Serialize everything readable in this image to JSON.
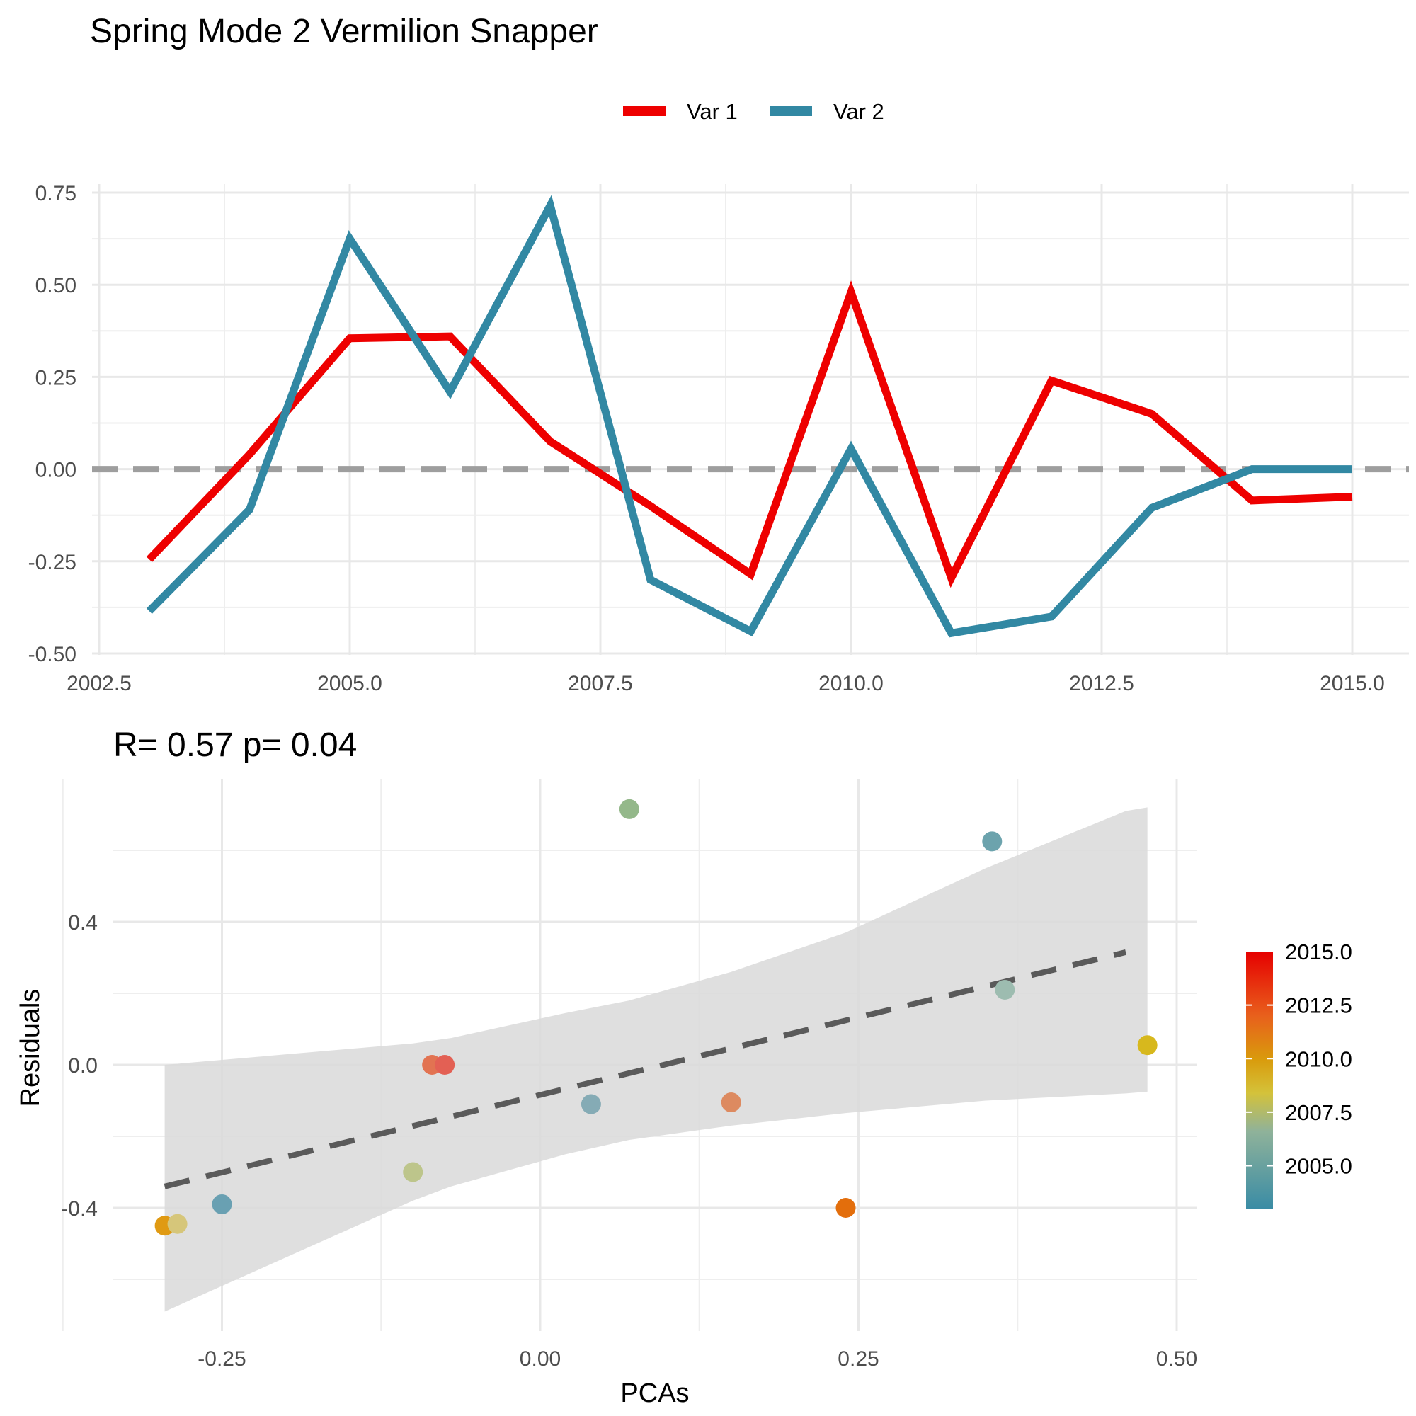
{
  "chart_data": [
    {
      "type": "line",
      "title": "Spring Mode 2 Vermilion Snapper",
      "xlabel": "",
      "ylabel": "",
      "xlim": [
        2002.5,
        2015.5
      ],
      "ylim": [
        -0.5,
        0.75
      ],
      "x_ticks": [
        "2002.5",
        "2005.0",
        "2007.5",
        "2010.0",
        "2012.5",
        "2015.0"
      ],
      "y_ticks": [
        "-0.50",
        "-0.25",
        "0.00",
        "0.25",
        "0.50",
        "0.75"
      ],
      "legend_position": "top",
      "reference_line": {
        "y": 0,
        "style": "dashed",
        "color": "#9e9e9e"
      },
      "x": [
        2003,
        2004,
        2005,
        2006,
        2007,
        2008,
        2009,
        2010,
        2011,
        2012,
        2013,
        2014,
        2015
      ],
      "series": [
        {
          "name": "Var 1",
          "color": "#ee0000",
          "values": [
            -0.245,
            0.04,
            0.355,
            0.36,
            0.075,
            -0.1,
            -0.285,
            0.48,
            -0.295,
            0.24,
            0.15,
            -0.085,
            -0.075
          ]
        },
        {
          "name": "Var 2",
          "color": "#3288a3",
          "values": [
            -0.385,
            -0.11,
            0.625,
            0.21,
            0.715,
            -0.3,
            -0.44,
            0.055,
            -0.445,
            -0.4,
            -0.105,
            0.0,
            0.0
          ]
        }
      ]
    },
    {
      "type": "scatter",
      "title": "R= 0.57  p= 0.04",
      "xlabel": "PCAs",
      "ylabel": "Residuals",
      "xlim": [
        -0.335,
        0.51
      ],
      "ylim": [
        -0.74,
        0.74
      ],
      "x_ticks": [
        "-0.25",
        "0.00",
        "0.25",
        "0.50"
      ],
      "y_ticks": [
        "-0.4",
        "0.0",
        "0.4"
      ],
      "fit": {
        "style": "dashed",
        "color": "#5a5a5a",
        "x": [
          -0.295,
          0.46
        ],
        "y": [
          -0.34,
          0.315
        ]
      },
      "ribbon": {
        "color": "#d9d9d9",
        "x": [
          -0.295,
          -0.1,
          -0.07,
          0.02,
          0.07,
          0.15,
          0.24,
          0.35,
          0.46,
          0.477
        ],
        "upper": [
          0.0,
          0.06,
          0.075,
          0.145,
          0.18,
          0.26,
          0.37,
          0.55,
          0.71,
          0.72
        ],
        "lower": [
          -0.69,
          -0.38,
          -0.34,
          -0.25,
          -0.21,
          -0.17,
          -0.135,
          -0.1,
          -0.08,
          -0.075
        ]
      },
      "colorbar": {
        "ticks": [
          "2015.0",
          "2012.5",
          "2010.0",
          "2007.5",
          "2005.0"
        ],
        "range": [
          2003,
          2015
        ],
        "stops": [
          {
            "offset": 0.0,
            "color": "#e60000"
          },
          {
            "offset": 0.25,
            "color": "#e8601c"
          },
          {
            "offset": 0.42,
            "color": "#d99b0c"
          },
          {
            "offset": 0.55,
            "color": "#d4c23a"
          },
          {
            "offset": 0.7,
            "color": "#8fb29a"
          },
          {
            "offset": 1.0,
            "color": "#3a8ca5"
          }
        ]
      },
      "points": [
        {
          "x": -0.295,
          "y": -0.45,
          "year": 2011,
          "color": "#e09a13"
        },
        {
          "x": -0.285,
          "y": -0.445,
          "year": 2009,
          "color": "#d6c67a"
        },
        {
          "x": -0.25,
          "y": -0.39,
          "year": 2004,
          "color": "#69a0b2"
        },
        {
          "x": -0.1,
          "y": -0.3,
          "year": 2008,
          "color": "#bdc58b"
        },
        {
          "x": -0.085,
          "y": 0.0,
          "year": 2013,
          "color": "#e27352"
        },
        {
          "x": -0.075,
          "y": 0.0,
          "year": 2014,
          "color": "#e36054"
        },
        {
          "x": 0.04,
          "y": -0.11,
          "year": 2005,
          "color": "#85abb5"
        },
        {
          "x": 0.07,
          "y": 0.715,
          "year": 2007,
          "color": "#94b88a"
        },
        {
          "x": 0.15,
          "y": -0.105,
          "year": 2013,
          "color": "#dd8a60"
        },
        {
          "x": 0.24,
          "y": -0.4,
          "year": 2012,
          "color": "#e36e0c"
        },
        {
          "x": 0.355,
          "y": 0.625,
          "year": 2004,
          "color": "#6ca3ad"
        },
        {
          "x": 0.365,
          "y": 0.21,
          "year": 2006,
          "color": "#9dbcb0"
        },
        {
          "x": 0.477,
          "y": 0.055,
          "year": 2010,
          "color": "#d7b81d"
        }
      ]
    }
  ]
}
